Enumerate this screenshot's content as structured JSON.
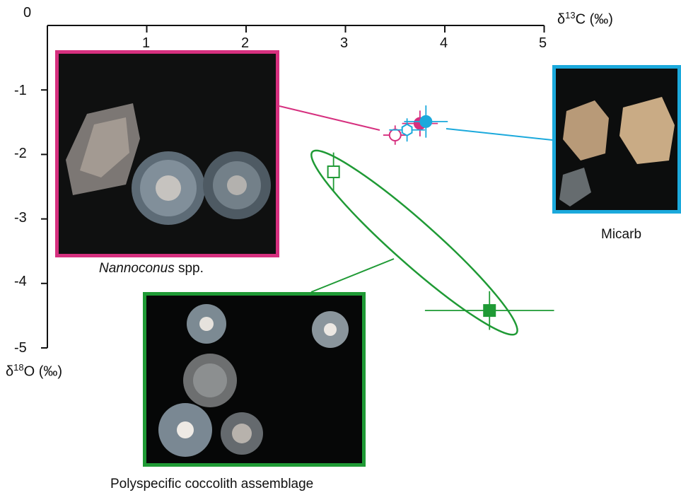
{
  "chart_data": {
    "type": "scatter",
    "xlabel": {
      "prefix": "δ",
      "sup": "13",
      "rest": "C (‰)"
    },
    "ylabel": {
      "prefix": "δ",
      "sup": "18",
      "rest": "O (‰)"
    },
    "xlim": [
      0,
      5
    ],
    "ylim": [
      -5,
      0
    ],
    "x_ticks": [
      "0",
      "1",
      "2",
      "3",
      "4",
      "5"
    ],
    "y_ticks": [
      "-1",
      "-2",
      "-3",
      "-4",
      "-5"
    ],
    "x_axis_position": "top",
    "grid": false,
    "series": [
      {
        "name": "Nannoconus spp.",
        "color": "#d6307f",
        "points": [
          {
            "x": 3.5,
            "y": -1.7,
            "xerr": 0.12,
            "yerr": 0.15,
            "marker": "circle-open"
          },
          {
            "x": 3.75,
            "y": -1.52,
            "xerr": 0.18,
            "yerr": 0.2,
            "marker": "circle-filled"
          }
        ]
      },
      {
        "name": "Micarb",
        "color": "#1ba9dc",
        "points": [
          {
            "x": 3.62,
            "y": -1.62,
            "xerr": 0.18,
            "yerr": 0.18,
            "marker": "hexagon-open"
          },
          {
            "x": 3.81,
            "y": -1.49,
            "xerr": 0.22,
            "yerr": 0.25,
            "marker": "circle-filled"
          }
        ]
      },
      {
        "name": "Polyspecific coccolith assemblage",
        "color": "#1f9a35",
        "points": [
          {
            "x": 2.88,
            "y": -2.27,
            "xerr": 0.0,
            "yerr": 0.3,
            "marker": "square-open"
          },
          {
            "x": 4.45,
            "y": -4.42,
            "xerr": 0.65,
            "yerr": 0.3,
            "marker": "square-filled"
          }
        ]
      }
    ]
  },
  "captions": {
    "nannoconus_genus": "Nannoconus",
    "nannoconus_suffix": " spp.",
    "micarb": "Micarb",
    "coccolith": "Polyspecific coccolith assemblage"
  },
  "colors": {
    "nannoconus": "#d6307f",
    "micarb": "#1ba9dc",
    "coccolith": "#1f9a35"
  }
}
